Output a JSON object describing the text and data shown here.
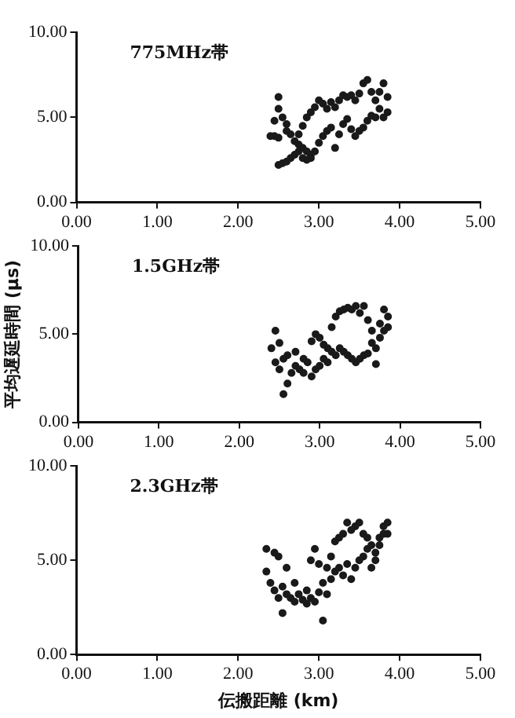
{
  "chart_data": [
    {
      "type": "scatter",
      "annotations": [
        "775MHz帯"
      ],
      "xlim": [
        0,
        5
      ],
      "xticks": [
        {
          "value": 0,
          "label": "0.00"
        },
        {
          "value": 1,
          "label": "1.00"
        },
        {
          "value": 2,
          "label": "2.00"
        },
        {
          "value": 3,
          "label": "3.00"
        },
        {
          "value": 4,
          "label": "4.00"
        },
        {
          "value": 5,
          "label": "5.00"
        }
      ],
      "ylim": [
        0,
        10
      ],
      "yticks": [
        {
          "value": 0,
          "label": "0.00"
        },
        {
          "value": 5,
          "label": "5.00"
        },
        {
          "value": 10,
          "label": "10.00"
        }
      ],
      "grid": false,
      "legend": false,
      "marker": "circle",
      "series": [
        {
          "color": "#1a1a1a",
          "x": [
            2.4,
            2.45,
            2.5,
            2.45,
            2.5,
            2.5,
            2.55,
            2.6,
            2.6,
            2.65,
            2.7,
            2.75,
            2.8,
            2.85,
            2.9,
            2.95,
            2.5,
            2.55,
            2.6,
            2.65,
            2.7,
            2.75,
            2.8,
            2.85,
            2.9,
            3.0,
            3.05,
            3.1,
            3.15,
            3.2,
            3.25,
            3.3,
            3.35,
            3.4,
            3.45,
            3.5,
            3.55,
            3.6,
            3.65,
            3.7,
            3.75,
            3.8,
            3.85,
            2.75,
            2.8,
            2.85,
            2.9,
            2.95,
            3.0,
            3.05,
            3.1,
            3.15,
            3.2,
            3.25,
            3.3,
            3.35,
            3.4,
            3.45,
            3.5,
            3.55,
            3.6,
            3.65,
            3.7,
            3.75,
            3.8,
            3.85
          ],
          "values": [
            3.9,
            3.9,
            3.8,
            4.8,
            5.5,
            6.2,
            5.0,
            4.6,
            4.2,
            4.0,
            3.6,
            3.4,
            3.2,
            3.0,
            2.8,
            3.0,
            2.2,
            2.3,
            2.4,
            2.6,
            2.8,
            3.0,
            2.6,
            2.5,
            2.6,
            3.5,
            3.9,
            4.2,
            4.4,
            3.2,
            4.0,
            4.6,
            4.9,
            4.3,
            3.9,
            4.2,
            4.4,
            4.8,
            5.1,
            5.0,
            5.5,
            5.0,
            5.3,
            4.0,
            4.5,
            5.0,
            5.3,
            5.6,
            6.0,
            5.8,
            5.5,
            5.9,
            5.6,
            6.0,
            6.3,
            6.2,
            6.3,
            6.0,
            6.4,
            7.0,
            7.2,
            6.5,
            6.0,
            6.5,
            7.0,
            6.2
          ]
        }
      ]
    },
    {
      "type": "scatter",
      "annotations": [
        "1.5GHz帯"
      ],
      "ylabel": "平均遅延時間 (μs)",
      "xlim": [
        0,
        5
      ],
      "xticks": [
        {
          "value": 0,
          "label": "0.00"
        },
        {
          "value": 1,
          "label": "1.00"
        },
        {
          "value": 2,
          "label": "2.00"
        },
        {
          "value": 3,
          "label": "3.00"
        },
        {
          "value": 4,
          "label": "4.00"
        },
        {
          "value": 5,
          "label": "5.00"
        }
      ],
      "ylim": [
        0,
        10
      ],
      "yticks": [
        {
          "value": 0,
          "label": "0.00"
        },
        {
          "value": 5,
          "label": "5.00"
        },
        {
          "value": 10,
          "label": "10.00"
        }
      ],
      "grid": false,
      "legend": false,
      "marker": "circle",
      "series": [
        {
          "color": "#1a1a1a",
          "x": [
            2.4,
            2.45,
            2.45,
            2.5,
            2.5,
            2.55,
            2.55,
            2.6,
            2.6,
            2.65,
            2.7,
            2.7,
            2.75,
            2.8,
            2.8,
            2.85,
            2.9,
            2.9,
            2.95,
            2.95,
            3.0,
            3.0,
            3.05,
            3.05,
            3.1,
            3.1,
            3.15,
            3.15,
            3.2,
            3.2,
            3.25,
            3.25,
            3.3,
            3.3,
            3.35,
            3.35,
            3.4,
            3.4,
            3.45,
            3.45,
            3.5,
            3.5,
            3.55,
            3.55,
            3.6,
            3.6,
            3.65,
            3.65,
            3.7,
            3.7,
            3.75,
            3.75,
            3.8,
            3.8,
            3.85,
            3.85
          ],
          "values": [
            4.2,
            5.2,
            3.4,
            3.0,
            4.5,
            3.6,
            1.6,
            2.2,
            3.8,
            2.8,
            3.2,
            4.0,
            3.0,
            2.8,
            3.6,
            3.4,
            2.6,
            4.6,
            5.0,
            3.0,
            3.2,
            4.8,
            3.6,
            4.4,
            4.2,
            3.4,
            5.4,
            4.0,
            6.0,
            3.8,
            6.3,
            4.2,
            6.4,
            4.0,
            6.5,
            3.8,
            6.4,
            3.6,
            6.6,
            3.4,
            6.2,
            3.6,
            6.6,
            3.8,
            5.8,
            3.9,
            5.2,
            4.5,
            4.2,
            3.3,
            4.8,
            5.6,
            6.4,
            5.2,
            6.0,
            5.4
          ]
        }
      ]
    },
    {
      "type": "scatter",
      "annotations": [
        "2.3GHz帯"
      ],
      "xlabel": "伝搬距離 (km)",
      "xlim": [
        0,
        5
      ],
      "xticks": [
        {
          "value": 0,
          "label": "0.00"
        },
        {
          "value": 1,
          "label": "1.00"
        },
        {
          "value": 2,
          "label": "2.00"
        },
        {
          "value": 3,
          "label": "3.00"
        },
        {
          "value": 4,
          "label": "4.00"
        },
        {
          "value": 5,
          "label": "5.00"
        }
      ],
      "ylim": [
        0,
        10
      ],
      "yticks": [
        {
          "value": 0,
          "label": "0.00"
        },
        {
          "value": 5,
          "label": "5.00"
        },
        {
          "value": 10,
          "label": "10.00"
        }
      ],
      "grid": false,
      "legend": false,
      "marker": "circle",
      "series": [
        {
          "color": "#1a1a1a",
          "x": [
            2.35,
            2.35,
            2.4,
            2.45,
            2.45,
            2.5,
            2.5,
            2.55,
            2.55,
            2.6,
            2.6,
            2.65,
            2.7,
            2.7,
            2.75,
            2.8,
            2.85,
            2.85,
            2.9,
            2.9,
            2.95,
            2.95,
            3.0,
            3.0,
            3.05,
            3.05,
            3.1,
            3.1,
            3.15,
            3.15,
            3.2,
            3.2,
            3.25,
            3.25,
            3.3,
            3.3,
            3.35,
            3.35,
            3.4,
            3.4,
            3.45,
            3.45,
            3.5,
            3.5,
            3.55,
            3.55,
            3.6,
            3.6,
            3.65,
            3.65,
            3.7,
            3.7,
            3.75,
            3.75,
            3.8,
            3.8,
            3.85,
            3.85
          ],
          "values": [
            5.6,
            4.4,
            3.8,
            5.4,
            3.4,
            5.2,
            3.0,
            2.2,
            3.6,
            4.6,
            3.2,
            3.0,
            3.8,
            2.8,
            3.2,
            2.9,
            3.4,
            2.7,
            3.0,
            5.0,
            5.6,
            2.8,
            4.8,
            3.3,
            1.8,
            3.8,
            4.6,
            3.2,
            5.2,
            4.0,
            6.0,
            4.4,
            6.2,
            4.6,
            6.4,
            4.2,
            7.0,
            4.8,
            6.6,
            4.0,
            6.8,
            4.6,
            7.0,
            5.0,
            6.4,
            5.2,
            6.2,
            5.6,
            5.8,
            4.6,
            5.4,
            5.0,
            6.2,
            5.8,
            6.8,
            6.4,
            7.0,
            6.4
          ]
        }
      ]
    }
  ]
}
